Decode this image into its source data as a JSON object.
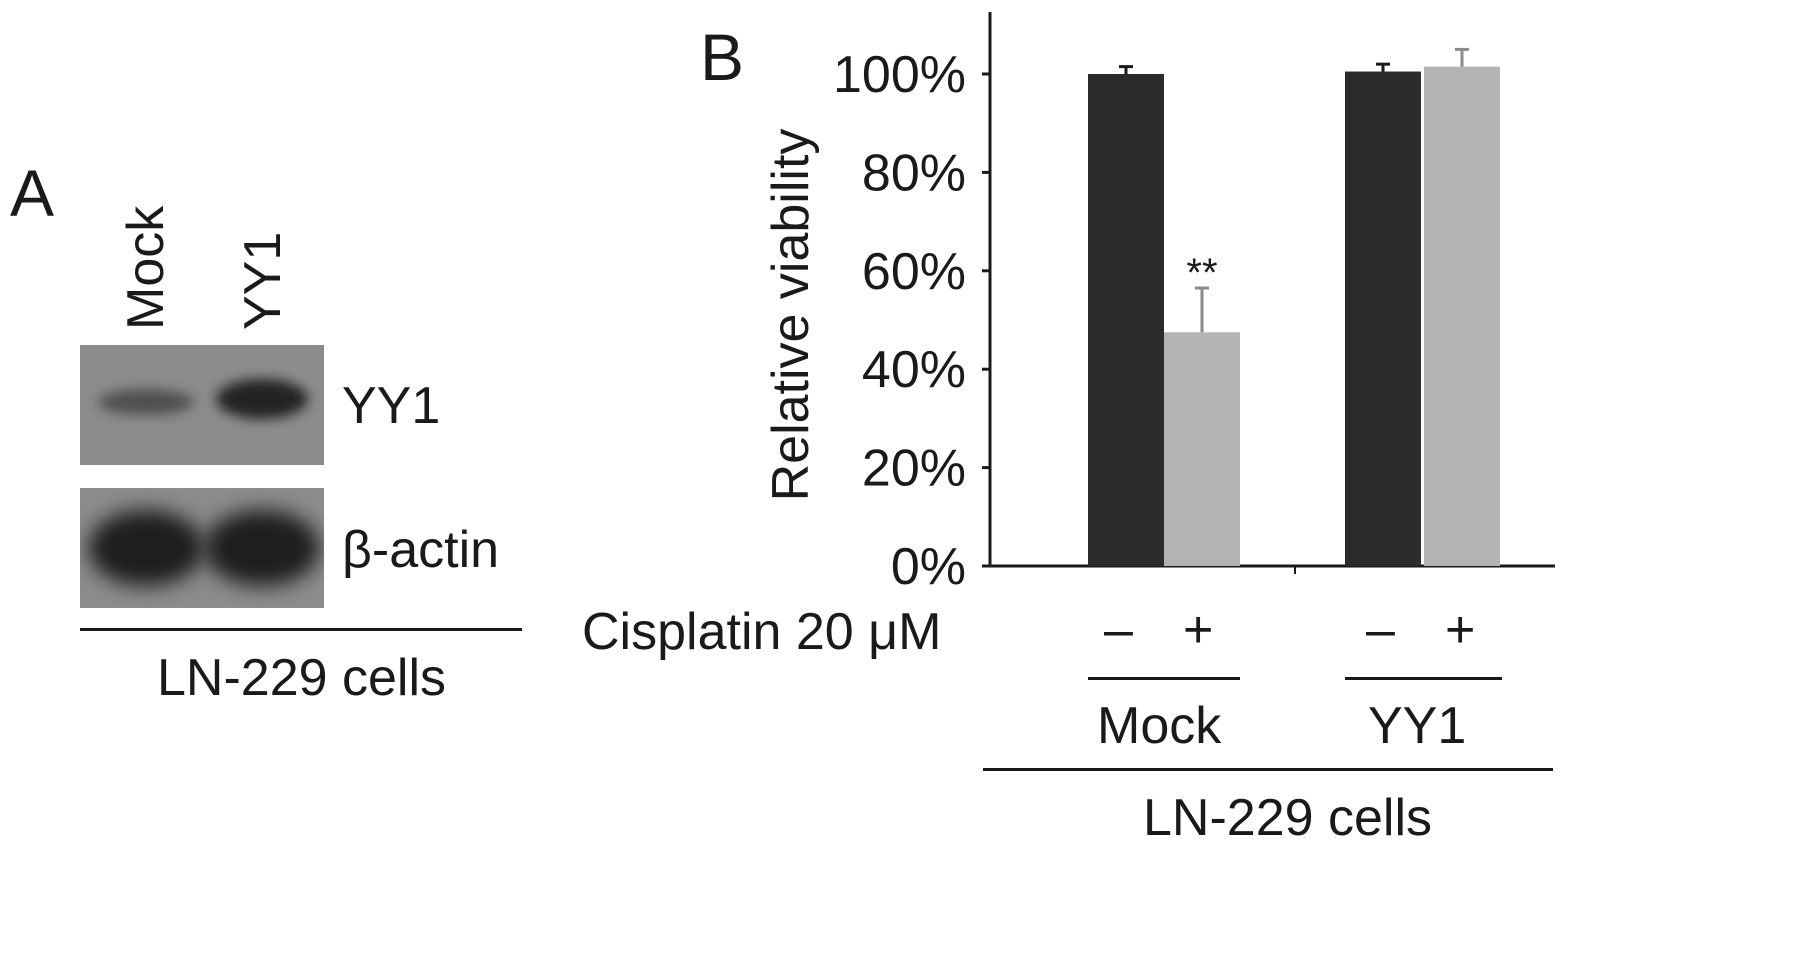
{
  "panel_a": {
    "letter": "A",
    "lanes": [
      "Mock",
      "YY1"
    ],
    "blots": [
      {
        "label": "YY1",
        "band_intensity": [
          0.55,
          0.95
        ]
      },
      {
        "label": "β-actin",
        "band_intensity": [
          1.0,
          1.0
        ]
      }
    ],
    "caption": "LN-229 cells"
  },
  "panel_b": {
    "letter": "B",
    "treatment_label": "Cisplatin 20 μM",
    "treatment_signs": [
      "–",
      "+",
      "–",
      "+"
    ],
    "group_labels": [
      "Mock",
      "YY1"
    ],
    "caption": "LN-229 cells"
  },
  "colors": {
    "dark_bar": "#2b2b2b",
    "light_bar": "#b4b4b4",
    "membrane": "#8c8c8c",
    "band": "#1e1e1e"
  },
  "chart_data": {
    "type": "bar",
    "ylabel": "Relative viability",
    "yticks": [
      "0%",
      "20%",
      "40%",
      "60%",
      "80%",
      "100%"
    ],
    "ylim": [
      0,
      110
    ],
    "bars": [
      {
        "group": "Mock",
        "cisplatin": "–",
        "value": 100,
        "error": 1.5,
        "shade": "dark",
        "annotation": ""
      },
      {
        "group": "Mock",
        "cisplatin": "+",
        "value": 47.5,
        "error": 9,
        "shade": "light",
        "annotation": "**"
      },
      {
        "group": "YY1",
        "cisplatin": "–",
        "value": 100.5,
        "error": 1.5,
        "shade": "dark",
        "annotation": ""
      },
      {
        "group": "YY1",
        "cisplatin": "+",
        "value": 101.5,
        "error": 3.5,
        "shade": "light",
        "annotation": ""
      }
    ]
  }
}
